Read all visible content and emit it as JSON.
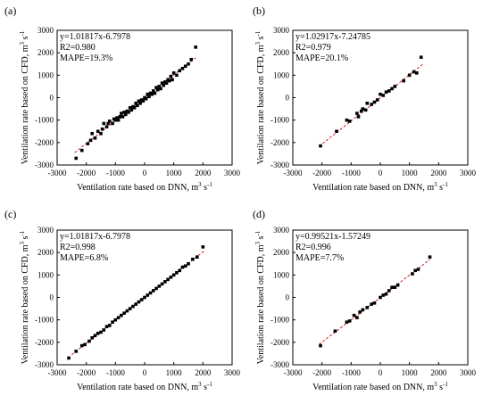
{
  "figure": {
    "x_unit_prefix": "Ventilation rate based on DNN, m",
    "y_unit_prefix": "Ventilation rate based on CFD, m",
    "unit_sup": "3",
    "unit_mid": " s",
    "unit_sup2": "-1"
  },
  "chart_data": [
    {
      "panel": "(a)",
      "type": "scatter",
      "xlabel": "Ventilation rate based on DNN, m3 s-1",
      "ylabel": "Ventilation rate based on CFD, m3 s-1",
      "xlim": [
        -3000,
        3000
      ],
      "ylim": [
        -3000,
        3000
      ],
      "xticks": [
        -3000,
        -2000,
        -1000,
        0,
        1000,
        2000,
        3000
      ],
      "yticks": [
        -3000,
        -2000,
        -1000,
        0,
        1000,
        2000,
        3000
      ],
      "annotations": [
        "y=1.01817x-6.7978",
        "R2=0.980",
        "MAPE=19.3%"
      ],
      "fit": {
        "slope": 1.01817,
        "intercept": -6.7978,
        "x_range": [
          -2400,
          1750
        ]
      },
      "x": [
        -2350,
        -2150,
        -1950,
        -1850,
        -1800,
        -1700,
        -1600,
        -1500,
        -1450,
        -1400,
        -1300,
        -1250,
        -1200,
        -1100,
        -1050,
        -1000,
        -950,
        -900,
        -850,
        -800,
        -750,
        -700,
        -650,
        -600,
        -550,
        -500,
        -450,
        -400,
        -350,
        -300,
        -250,
        -200,
        -150,
        -100,
        -50,
        0,
        50,
        100,
        150,
        200,
        250,
        300,
        350,
        400,
        450,
        500,
        550,
        600,
        650,
        700,
        750,
        800,
        850,
        900,
        950,
        1000,
        1100,
        1200,
        1300,
        1400,
        1500,
        1600,
        1750
      ],
      "y": [
        -2700,
        -2350,
        -2050,
        -1900,
        -1600,
        -1800,
        -1500,
        -1600,
        -1400,
        -1150,
        -1300,
        -1150,
        -1050,
        -1150,
        -950,
        -1000,
        -900,
        -1000,
        -850,
        -700,
        -850,
        -650,
        -750,
        -600,
        -650,
        -450,
        -550,
        -400,
        -450,
        -250,
        -350,
        -150,
        -250,
        -100,
        -150,
        0,
        -50,
        150,
        50,
        200,
        150,
        300,
        200,
        450,
        350,
        500,
        400,
        650,
        550,
        700,
        650,
        800,
        750,
        950,
        800,
        1100,
        1000,
        1200,
        1300,
        1400,
        1500,
        1700,
        2250
      ]
    },
    {
      "panel": "(b)",
      "type": "scatter",
      "xlabel": "Ventilation rate based on DNN, m3 s-1",
      "ylabel": "Ventilation rate based on CFD, m3 s-1",
      "xlim": [
        -3000,
        3000
      ],
      "ylim": [
        -3000,
        3000
      ],
      "xticks": [
        -3000,
        -2000,
        -1000,
        0,
        1000,
        2000,
        3000
      ],
      "yticks": [
        -3000,
        -2000,
        -1000,
        0,
        1000,
        2000,
        3000
      ],
      "annotations": [
        "y=1.02917x-7.24785",
        "R2=0.979",
        "MAPE=20.1%"
      ],
      "fit": {
        "slope": 1.02917,
        "intercept": -7.24785,
        "x_range": [
          -2100,
          1450
        ]
      },
      "x": [
        -2050,
        -1500,
        -1150,
        -1050,
        -800,
        -750,
        -650,
        -600,
        -500,
        -450,
        -300,
        -200,
        -100,
        0,
        100,
        200,
        300,
        400,
        500,
        800,
        1000,
        1150,
        1250,
        1400
      ],
      "y": [
        -2150,
        -1500,
        -1000,
        -1050,
        -700,
        -850,
        -600,
        -500,
        -550,
        -250,
        -300,
        -200,
        -100,
        150,
        100,
        250,
        300,
        400,
        500,
        750,
        1000,
        1150,
        1100,
        1800
      ]
    },
    {
      "panel": "(c)",
      "type": "scatter",
      "xlabel": "Ventilation rate based on DNN, m3 s-1",
      "ylabel": "Ventilation rate based on CFD, m3 s-1",
      "xlim": [
        -3000,
        3000
      ],
      "ylim": [
        -3000,
        3000
      ],
      "xticks": [
        -3000,
        -2000,
        -1000,
        0,
        1000,
        2000,
        3000
      ],
      "yticks": [
        -3000,
        -2000,
        -1000,
        0,
        1000,
        2000,
        3000
      ],
      "annotations": [
        "y=1.01817x-6.7978",
        "R2=0.998",
        "MAPE=6.8%"
      ],
      "fit": {
        "slope": 1.01817,
        "intercept": -6.7978,
        "x_range": [
          -2500,
          2050
        ]
      },
      "x": [
        -2600,
        -2350,
        -2150,
        -2050,
        -1900,
        -1800,
        -1700,
        -1600,
        -1500,
        -1400,
        -1300,
        -1200,
        -1100,
        -1000,
        -900,
        -800,
        -700,
        -600,
        -500,
        -400,
        -300,
        -200,
        -100,
        0,
        100,
        200,
        300,
        400,
        500,
        600,
        700,
        800,
        900,
        1000,
        1100,
        1200,
        1300,
        1400,
        1500,
        1650,
        1800,
        2000
      ],
      "y": [
        -2700,
        -2400,
        -2150,
        -2100,
        -1950,
        -1800,
        -1700,
        -1600,
        -1550,
        -1450,
        -1300,
        -1250,
        -1100,
        -1000,
        -900,
        -800,
        -700,
        -600,
        -500,
        -400,
        -300,
        -200,
        -100,
        0,
        100,
        200,
        300,
        400,
        500,
        600,
        700,
        800,
        900,
        1000,
        1100,
        1200,
        1350,
        1400,
        1500,
        1700,
        1800,
        2250
      ]
    },
    {
      "panel": "(d)",
      "type": "scatter",
      "xlabel": "Ventilation rate based on DNN, m3 s-1",
      "ylabel": "Ventilation rate based on CFD, m3 s-1",
      "xlim": [
        -3000,
        3000
      ],
      "ylim": [
        -3000,
        3000
      ],
      "xticks": [
        -3000,
        -2000,
        -1000,
        0,
        1000,
        2000,
        3000
      ],
      "yticks": [
        -3000,
        -2000,
        -1000,
        0,
        1000,
        2000,
        3000
      ],
      "annotations": [
        "y=0.99521x-1.57249",
        "R2=0.996",
        "MAPE=7.7%"
      ],
      "fit": {
        "slope": 0.99521,
        "intercept": -1.57249,
        "x_range": [
          -2100,
          1700
        ]
      },
      "x": [
        -2050,
        -1550,
        -1150,
        -1050,
        -900,
        -800,
        -700,
        -600,
        -450,
        -300,
        -200,
        0,
        100,
        200,
        300,
        400,
        500,
        600,
        1100,
        1200,
        1300,
        1700
      ],
      "y": [
        -2150,
        -1500,
        -1100,
        -1050,
        -800,
        -900,
        -650,
        -550,
        -450,
        -300,
        -250,
        0,
        100,
        150,
        300,
        450,
        450,
        550,
        1050,
        1200,
        1250,
        1800
      ]
    }
  ]
}
